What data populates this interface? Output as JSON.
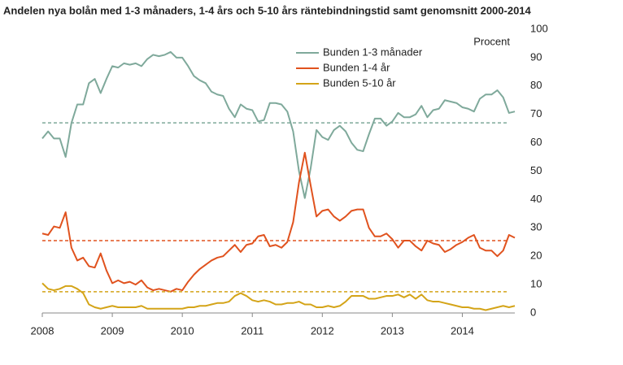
{
  "chart_data": {
    "type": "line",
    "title": "Andelen nya bolån med 1-3 månaders, 1-4 års och 5-10 års räntebindningstid samt genomsnitt 2000-2014",
    "y_label": "Procent",
    "categories": [
      "2008",
      null,
      null,
      null,
      null,
      null,
      null,
      null,
      null,
      null,
      null,
      null,
      "2009",
      null,
      null,
      null,
      null,
      null,
      null,
      null,
      null,
      null,
      null,
      null,
      "2010",
      null,
      null,
      null,
      null,
      null,
      null,
      null,
      null,
      null,
      null,
      null,
      "2011",
      null,
      null,
      null,
      null,
      null,
      null,
      null,
      null,
      null,
      null,
      null,
      "2012",
      null,
      null,
      null,
      null,
      null,
      null,
      null,
      null,
      null,
      null,
      null,
      "2013",
      null,
      null,
      null,
      null,
      null,
      null,
      null,
      null,
      null,
      null,
      null,
      "2014",
      null,
      null,
      null,
      null,
      null,
      null,
      null,
      null,
      null
    ],
    "ylim": [
      0,
      100
    ],
    "yticks": [
      0,
      10,
      20,
      30,
      40,
      50,
      60,
      70,
      80,
      90,
      100
    ],
    "series": [
      {
        "name": "Bunden 1-3 månader",
        "color": "#7fa99b",
        "average": 67,
        "values": [
          61.5,
          64,
          61.5,
          61.5,
          55,
          67,
          73.5,
          73.5,
          81,
          82.5,
          77.5,
          82.5,
          87,
          86.5,
          88,
          87.5,
          88,
          87,
          89.5,
          91,
          90.5,
          91,
          92,
          90,
          90,
          87,
          83.5,
          82,
          81,
          78,
          77,
          76.5,
          72,
          69,
          73.5,
          72,
          71.5,
          67.5,
          68,
          74,
          74,
          73.5,
          71,
          64,
          50,
          40.5,
          51,
          64.5,
          62,
          61,
          64.5,
          66,
          64,
          60,
          57.5,
          57,
          63,
          68.5,
          68.5,
          66,
          67.5,
          70.5,
          69,
          69,
          70,
          73,
          69,
          71.5,
          72,
          75,
          74.5,
          74,
          72.5,
          72,
          71,
          75.5,
          77,
          77,
          78.5,
          76,
          70.5,
          71
        ]
      },
      {
        "name": "Bunden 1-4 år",
        "color": "#e0521e",
        "average": 25.5,
        "values": [
          28,
          27.5,
          30.5,
          30,
          35.5,
          23,
          18.5,
          19.5,
          16.5,
          16,
          21,
          15,
          10.5,
          11.5,
          10.5,
          11,
          10,
          11.5,
          9,
          8,
          8.5,
          8,
          7.5,
          8.5,
          8,
          11,
          13.5,
          15.5,
          17,
          18.5,
          19.5,
          20,
          22,
          24,
          21.5,
          24,
          24.5,
          27,
          27.5,
          23.5,
          24,
          23,
          25,
          32,
          46,
          56.5,
          45,
          34,
          36,
          36.5,
          34,
          32.5,
          34,
          36,
          36.5,
          36.5,
          30,
          27,
          27,
          28,
          26,
          23,
          25.5,
          25.5,
          23.5,
          22,
          25.5,
          24.5,
          24,
          21.5,
          22.5,
          24,
          25,
          26.5,
          27.5,
          23,
          22,
          22,
          20,
          22,
          27.5,
          26.5
        ]
      },
      {
        "name": "Bunden 5-10 år",
        "color": "#d4a418",
        "average": 7.5,
        "values": [
          10.5,
          8.5,
          8,
          8.5,
          9.5,
          9.5,
          8.5,
          7,
          3,
          2,
          1.5,
          2,
          2.5,
          2,
          2,
          2,
          2,
          2.5,
          1.5,
          1.5,
          1.5,
          1.5,
          1.5,
          1.5,
          1.5,
          2,
          2,
          2.5,
          2.5,
          3,
          3.5,
          3.5,
          4,
          6,
          7,
          6,
          4.5,
          4,
          4.5,
          4,
          3,
          3,
          3.5,
          3.5,
          4,
          3,
          3,
          2,
          2,
          2.5,
          2,
          2.5,
          4,
          6,
          6,
          6,
          5,
          5,
          5.5,
          6,
          6,
          6.5,
          5.5,
          6.5,
          5,
          6.5,
          4.5,
          4,
          4,
          3.5,
          3,
          2.5,
          2,
          2,
          1.5,
          1.5,
          1,
          1.5,
          2,
          2.5,
          2,
          2.5
        ]
      }
    ]
  }
}
